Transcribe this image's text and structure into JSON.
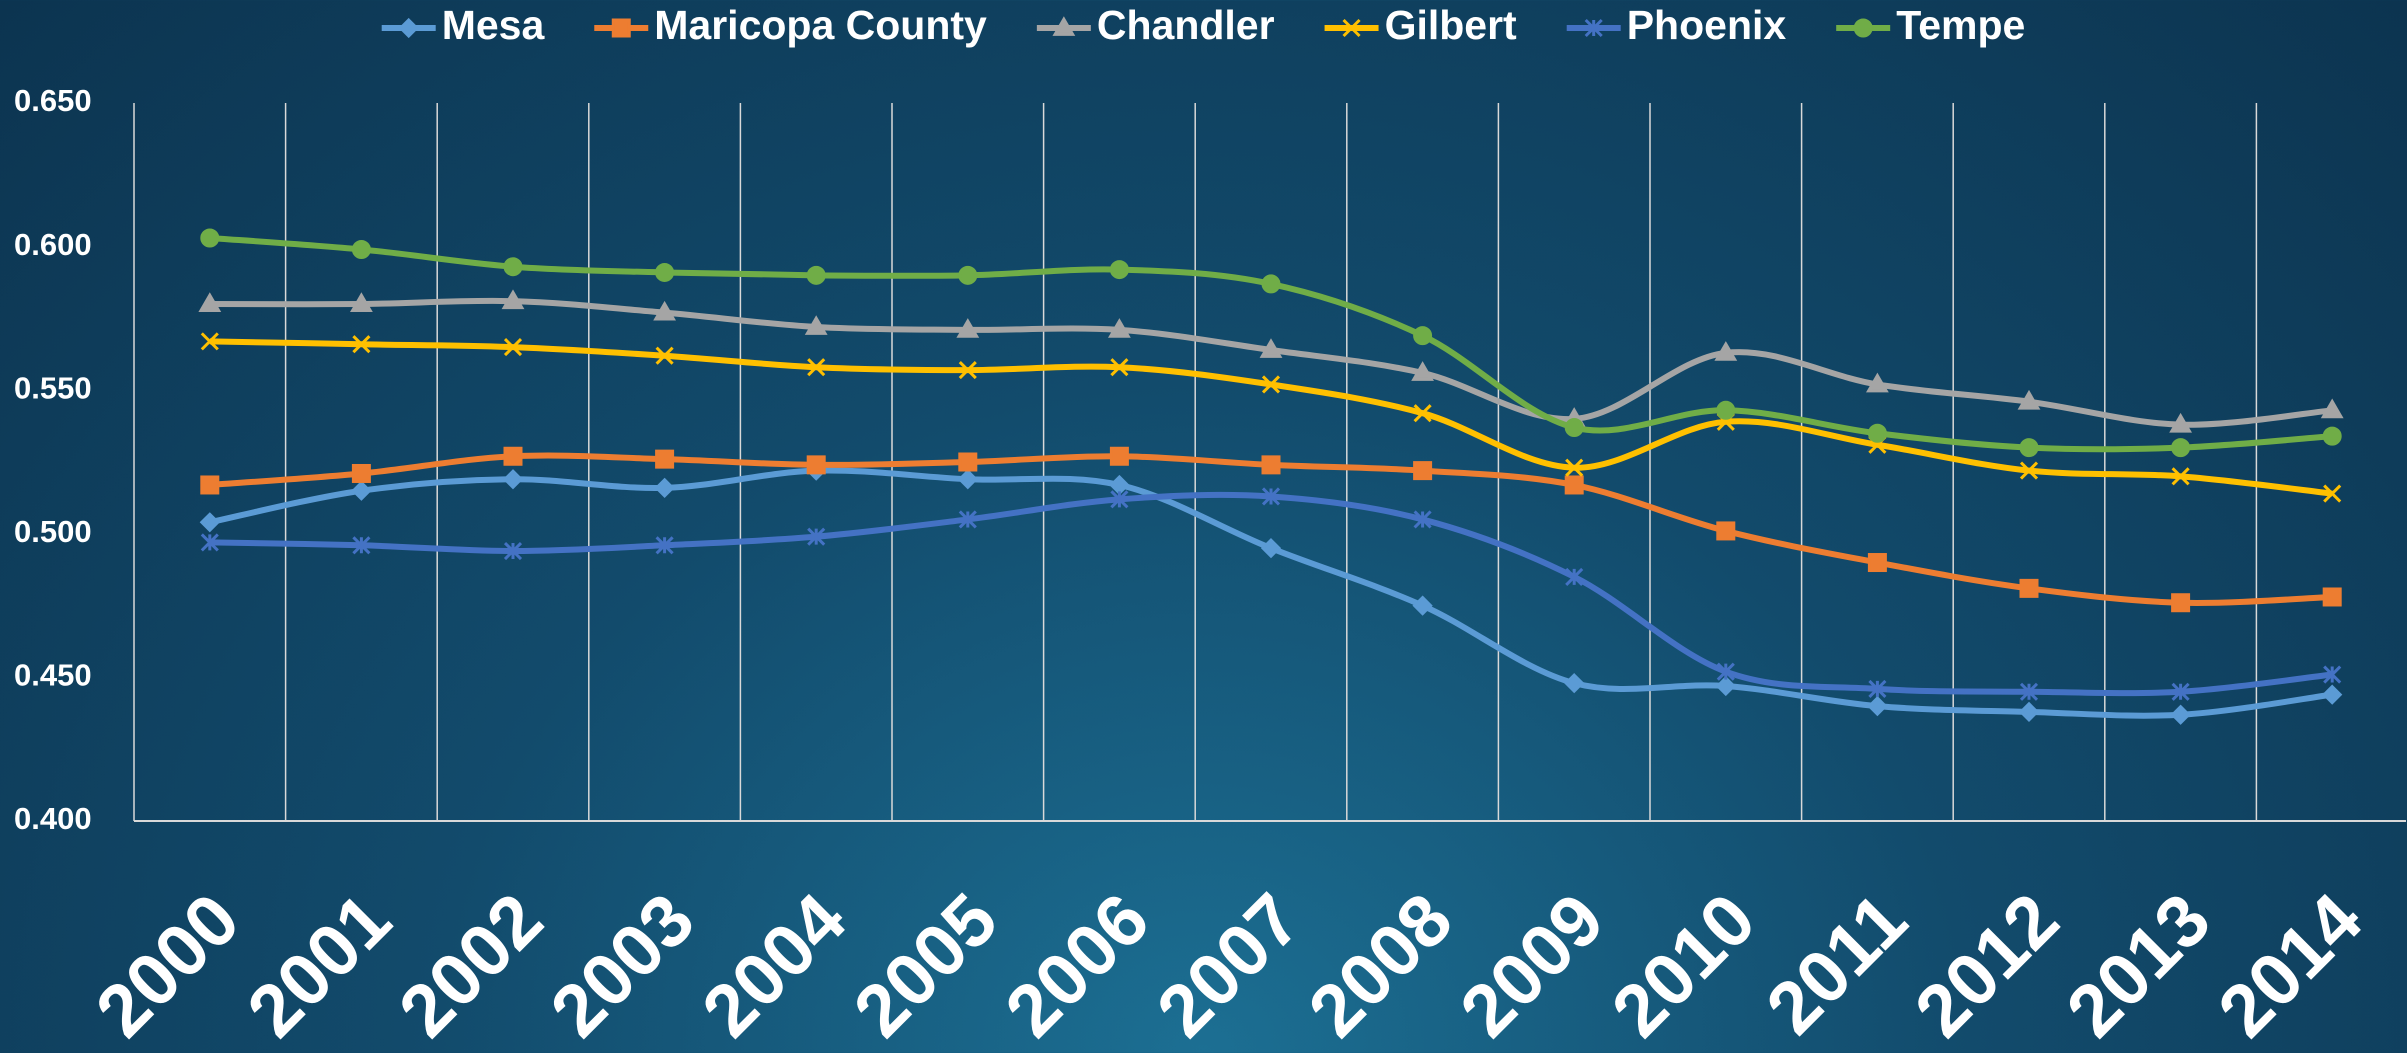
{
  "chart_data": {
    "type": "line",
    "categories": [
      "2000",
      "2001",
      "2002",
      "2003",
      "2004",
      "2005",
      "2006",
      "2007",
      "2008",
      "2009",
      "2010",
      "2011",
      "2012",
      "2013",
      "2014"
    ],
    "series": [
      {
        "name": "Mesa",
        "color": "#5b9bd5",
        "marker": "diamond",
        "values": [
          0.504,
          0.515,
          0.519,
          0.516,
          0.522,
          0.519,
          0.517,
          0.495,
          0.475,
          0.448,
          0.447,
          0.44,
          0.438,
          0.437,
          0.444
        ]
      },
      {
        "name": "Maricopa County",
        "color": "#ed7d31",
        "marker": "square",
        "values": [
          0.517,
          0.521,
          0.527,
          0.526,
          0.524,
          0.525,
          0.527,
          0.524,
          0.522,
          0.517,
          0.501,
          0.49,
          0.481,
          0.476,
          0.478
        ]
      },
      {
        "name": "Chandler",
        "color": "#a5a5a5",
        "marker": "triangle",
        "values": [
          0.58,
          0.58,
          0.581,
          0.577,
          0.572,
          0.571,
          0.571,
          0.564,
          0.556,
          0.54,
          0.563,
          0.552,
          0.546,
          0.538,
          0.543
        ]
      },
      {
        "name": "Gilbert",
        "color": "#ffc000",
        "marker": "x",
        "values": [
          0.567,
          0.566,
          0.565,
          0.562,
          0.558,
          0.557,
          0.558,
          0.552,
          0.542,
          0.523,
          0.539,
          0.531,
          0.522,
          0.52,
          0.514
        ]
      },
      {
        "name": "Phoenix",
        "color": "#4472c4",
        "marker": "star",
        "values": [
          0.497,
          0.496,
          0.494,
          0.496,
          0.499,
          0.505,
          0.512,
          0.513,
          0.505,
          0.485,
          0.452,
          0.446,
          0.445,
          0.445,
          0.451
        ]
      },
      {
        "name": "Tempe",
        "color": "#70ad47",
        "marker": "circle",
        "values": [
          0.603,
          0.599,
          0.593,
          0.591,
          0.59,
          0.59,
          0.592,
          0.587,
          0.569,
          0.537,
          0.543,
          0.535,
          0.53,
          0.53,
          0.534
        ]
      }
    ],
    "ylim": [
      0.4,
      0.65
    ],
    "yticks": [
      {
        "value": 0.4,
        "label": "0.400"
      },
      {
        "value": 0.45,
        "label": "0.450"
      },
      {
        "value": 0.5,
        "label": "0.500"
      },
      {
        "value": 0.55,
        "label": "0.550"
      },
      {
        "value": 0.6,
        "label": "0.600"
      },
      {
        "value": 0.65,
        "label": "0.650"
      }
    ],
    "grid": true,
    "smooth": true,
    "legend": "top"
  }
}
